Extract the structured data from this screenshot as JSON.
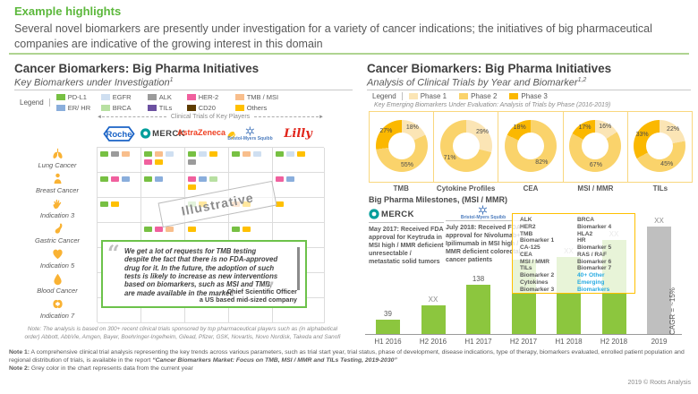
{
  "top": {
    "eyebrow": "Example highlights",
    "summary": "Several novel biomarkers are presently under investigation for a variety of cancer indications; the initiatives of big pharmaceutical companies are indicative of the growing interest in this domain"
  },
  "left": {
    "title": "Cancer Biomarkers: Big Pharma Initiatives",
    "subtitle": "Key Biomarkers under Investigation",
    "subtitle_sup": "1",
    "legend_label": "Legend",
    "legend": [
      {
        "label": "PD-L1",
        "color": "#77C043"
      },
      {
        "label": "EGFR",
        "color": "#CFDFF1"
      },
      {
        "label": "ALK",
        "color": "#9B9B9B"
      },
      {
        "label": "HER-2",
        "color": "#F0609E"
      },
      {
        "label": "TMB / MSI",
        "color": "#F8BE8C"
      },
      {
        "label": "ER/ HR",
        "color": "#8AAEDC"
      },
      {
        "label": "BRCA",
        "color": "#B8E0A2"
      },
      {
        "label": "TILs",
        "color": "#6C51A1"
      },
      {
        "label": "CD20",
        "color": "#5E3C00"
      },
      {
        "label": "Others",
        "color": "#FFC000"
      }
    ],
    "axis_caption": "Clinical Trials of Key Players",
    "companies": [
      {
        "name": "Roche",
        "color": "#1A63C6"
      },
      {
        "name": "MERCK",
        "color": "#009E9B",
        "text_color": "#3F3F3F"
      },
      {
        "name": "AstraZeneca",
        "color": "#EF4123",
        "accent": "#FFC20E"
      },
      {
        "name": "Bristol-Myers Squibb",
        "color": "#4C7CBE"
      },
      {
        "name": "Lilly",
        "color": "#E1251B"
      }
    ],
    "rows": [
      {
        "label": "Lung Cancer",
        "icon": "lungs-icon",
        "cells": [
          [
            "PD-L1",
            "ALK",
            "TMB / MSI"
          ],
          [
            "PD-L1",
            "TMB / MSI",
            "EGFR",
            "HER-2",
            "Others"
          ],
          [
            "PD-L1",
            "EGFR",
            "Others",
            "ALK"
          ],
          [
            "PD-L1",
            "TMB / MSI",
            "EGFR"
          ],
          [
            "PD-L1",
            "EGFR",
            "Others"
          ]
        ]
      },
      {
        "label": "Breast Cancer",
        "icon": "person-icon",
        "cells": [
          [
            "PD-L1",
            "HER-2",
            "ER/ HR"
          ],
          [
            "PD-L1",
            "ER/ HR"
          ],
          [
            "HER-2",
            "ER/ HR",
            "BRCA",
            "Others"
          ],
          [],
          [
            "HER-2",
            "ER/ HR"
          ]
        ]
      },
      {
        "label": "Indication 3",
        "icon": "hand-icon",
        "cells": [
          [
            "PD-L1",
            "Others"
          ],
          [],
          [
            "BRCA",
            "Others"
          ],
          [
            "TMB / MSI",
            "Others"
          ],
          [
            "Others"
          ]
        ]
      },
      {
        "label": "Gastric Cancer",
        "icon": "stomach-icon",
        "cells": [
          [],
          [
            "PD-L1",
            "HER-2",
            "TMB / MSI"
          ],
          [
            "Others"
          ],
          [
            "PD-L1",
            "Others"
          ],
          []
        ]
      },
      {
        "label": "Indication 5",
        "icon": "heart-icon",
        "cells": [
          [],
          [],
          [],
          [],
          []
        ]
      },
      {
        "label": "Blood Cancer",
        "icon": "blood-drop-icon",
        "cells": [
          [],
          [],
          [],
          [],
          []
        ]
      },
      {
        "label": "Indication 7",
        "icon": "kidney-icon",
        "cells": [
          [],
          [],
          [],
          [],
          []
        ]
      }
    ],
    "watermark": "Illustrative",
    "quote": {
      "text": "We get a lot of requests for TMB testing despite the fact that there is no FDA-approved drug for it. In the future, the adoption of such tests is likely to increase as new interventions based on biomarkers, such as MSI and TMB, are made available in the market.",
      "attribution_1": "- Chief Scientific Officer",
      "attribution_2": "a US based mid-sized company"
    },
    "note": "Note: The analysis is based on 300+ recent clinical trials sponsored by top pharmaceutical players such as (in alphabetical order) Abbott, AbbVie, Amgen, Bayer, Boehringer-Ingelheim, Gilead, Pfizer, GSK, Novartis, Novo Nordisk, Takeda and Sanofi"
  },
  "right": {
    "title": "Cancer Biomarkers: Big Pharma Initiatives",
    "subtitle": "Analysis of Clinical Trials by Year and Biomarker",
    "subtitle_sup": "1,2",
    "legend_label": "Legend",
    "phases": [
      {
        "label": "Phase 1",
        "color": "#FBE5B5"
      },
      {
        "label": "Phase 2",
        "color": "#FAD36B"
      },
      {
        "label": "Phase 3",
        "color": "#FBB800"
      }
    ],
    "donut_caption": "Key Emerging Biomarkers Under Evaluation: Analysis of Trials by Phase (2016-2019)",
    "milestones_title": "Big Pharma Milestones, (MSI / MMR)",
    "milestones": [
      {
        "company": "MERCK",
        "text": "May 2017: Received FDA approval for Keytruda in MSI high / MMR deficient unresectable / metastatic solid tumors"
      },
      {
        "company": "Bristol-Myers Squibb",
        "text": "July 2018: Received FDA approval for Nivolumab+ Ipilimumab in MSI high / MMR deficient colorectal cancer patients"
      }
    ],
    "box": {
      "col1": [
        "ALK",
        "HER2",
        "TMB",
        "Biomarker 1",
        "CA-125",
        "CEA",
        "MSI / MMR",
        "TILs",
        "Biomarker 2",
        "Cytokines",
        "Biomarker 3"
      ],
      "col2": [
        "BRCA",
        "Biomarker 4",
        "HLA2",
        "HR",
        "Biomarker 5",
        "RAS / RAF",
        "Biomarker 6",
        "Biomarker 7"
      ],
      "highlight": "40+ Other Emerging Biomarkers",
      "highlight_color": "#29ABE2"
    },
    "bar_green": "#8CC63E",
    "bar_grey": "#BFBFBF",
    "cagr_label": "CAGR = ~15%"
  },
  "chart_data": [
    {
      "type": "pie",
      "title": "TMB",
      "labels": [
        "Phase 1",
        "Phase 2",
        "Phase 3"
      ],
      "values": [
        18,
        55,
        27
      ]
    },
    {
      "type": "pie",
      "title": "Cytokine Profiles",
      "labels": [
        "Phase 1",
        "Phase 2",
        "Phase 3"
      ],
      "values": [
        29,
        71,
        0
      ]
    },
    {
      "type": "pie",
      "title": "CEA",
      "labels": [
        "Phase 1",
        "Phase 2",
        "Phase 3"
      ],
      "values": [
        0,
        82,
        18
      ]
    },
    {
      "type": "pie",
      "title": "MSI / MMR",
      "labels": [
        "Phase 1",
        "Phase 2",
        "Phase 3"
      ],
      "values": [
        16,
        67,
        17
      ]
    },
    {
      "type": "pie",
      "title": "TILs",
      "labels": [
        "Phase 1",
        "Phase 2",
        "Phase 3"
      ],
      "values": [
        22,
        45,
        33
      ]
    },
    {
      "type": "bar",
      "title": "Clinical trials by half-year (MSI / MMR milestones chart)",
      "categories": [
        "H1 2016",
        "H2 2016",
        "H1 2017",
        "H2 2017",
        "H1 2018",
        "H2 2018",
        "2019"
      ],
      "value_labels": [
        "39",
        "XX",
        "138",
        "XX",
        "XX",
        "XX",
        "XX"
      ],
      "values_est": [
        39,
        80,
        138,
        208,
        215,
        262,
        300
      ],
      "bar_colors": [
        "green",
        "green",
        "green",
        "green",
        "green",
        "green",
        "grey"
      ],
      "annotation": "CAGR = ~15%"
    }
  ],
  "notes": {
    "note1_label": "Note 1:",
    "note1_text": " A comprehensive clinical trial analysis representing the key trends across various parameters, such as trial start year, trial status, phase of development, disease indications, type of therapy, biomarkers evaluated, enrolled patient population and regional distribution of trials, is available in the report ",
    "note1_report": "“Cancer Biomarkers Market: Focus on TMB, MSI / MMR and TILs Testing, 2019-2030”",
    "note2_label": "Note 2:",
    "note2_text": " Grey color in the chart represents data from the current year"
  },
  "footer": {
    "copyright": "2019 © Roots Analysis"
  }
}
